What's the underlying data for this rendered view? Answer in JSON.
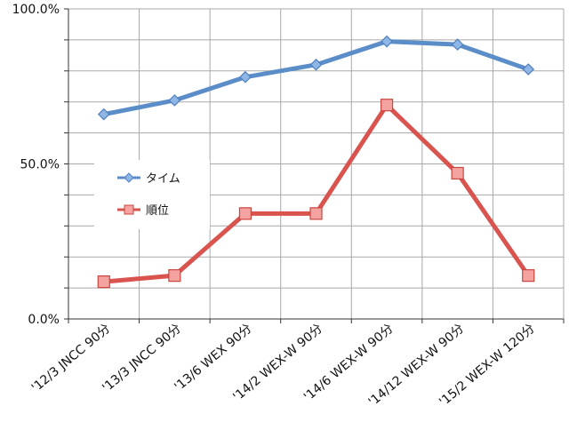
{
  "chart_data": {
    "type": "line",
    "categories": [
      "'12/3 JNCC 90分",
      "'13/3 JNCC 90分",
      "'13/6 WEX 90分",
      "'14/2 WEX-W 90分",
      "'14/6 WEX-W 90分",
      "'14/12 WEX-W 90分",
      "'15/2 WEX-W 120分"
    ],
    "series": [
      {
        "name": "タイム",
        "values": [
          66.0,
          70.5,
          78.0,
          82.0,
          89.5,
          88.5,
          80.5
        ],
        "color": "#5b8ec9",
        "marker": "diamond"
      },
      {
        "name": "順位",
        "values": [
          12.0,
          14.0,
          34.0,
          34.0,
          69.0,
          47.0,
          14.0
        ],
        "color": "#d9534f",
        "marker": "square"
      }
    ],
    "yticks": [
      "0.0%",
      "50.0%",
      "100.0%"
    ],
    "ylim": [
      0,
      100
    ],
    "grid": true,
    "legend": "left"
  }
}
